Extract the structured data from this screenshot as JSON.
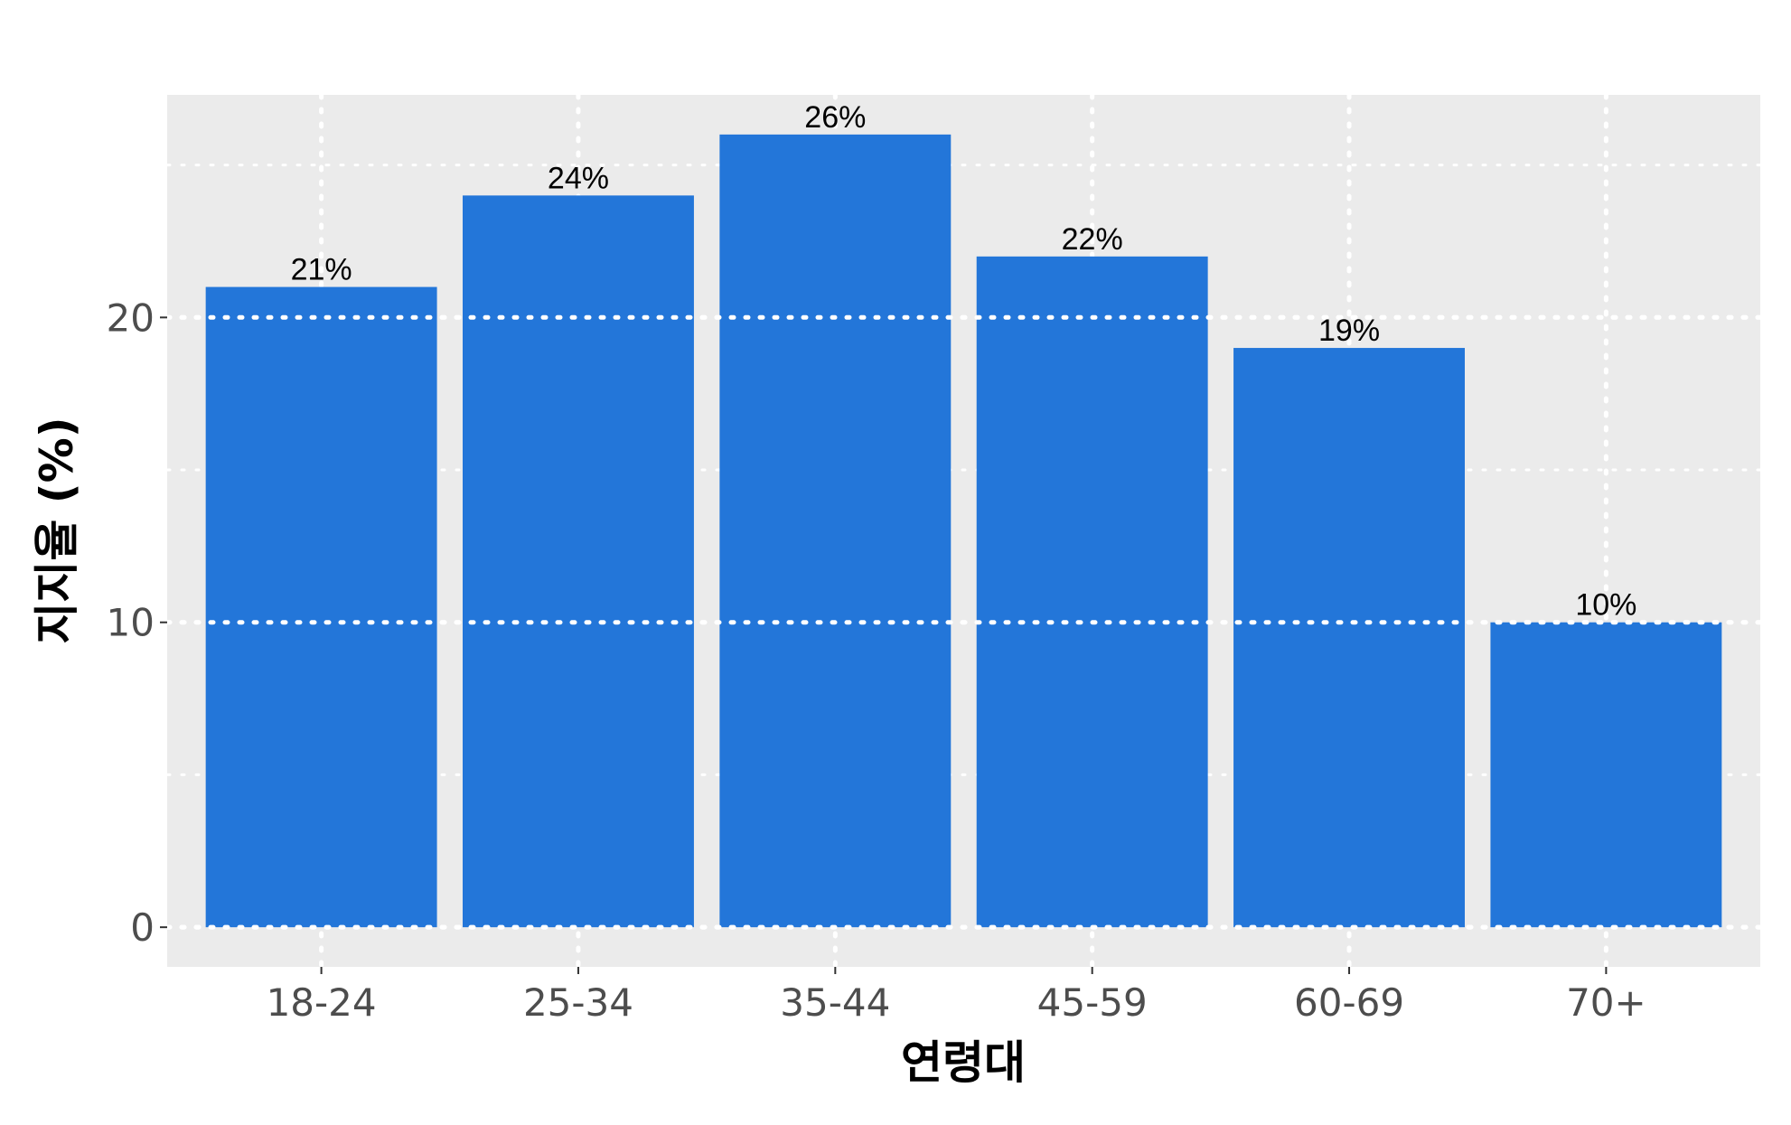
{
  "chart_data": {
    "type": "bar",
    "categories": [
      "18-24",
      "25-34",
      "35-44",
      "45-59",
      "60-69",
      "70+"
    ],
    "values": [
      21,
      24,
      26,
      22,
      19,
      10
    ],
    "data_labels": [
      "21%",
      "24%",
      "26%",
      "22%",
      "19%",
      "10%"
    ],
    "title": "",
    "xlabel": "연령대",
    "ylabel": "지지율 (%)",
    "ylim": [
      -1.3,
      27.3
    ],
    "yticks": [
      0,
      10,
      20
    ],
    "minor_yticks": [
      5,
      15,
      25
    ],
    "grid": true,
    "legend": "none",
    "colors": {
      "bar": "#2376d9",
      "panel": "#ebebeb",
      "grid": "#ffffff",
      "tick_text": "#4d4d4d",
      "title_text": "#000000"
    }
  }
}
